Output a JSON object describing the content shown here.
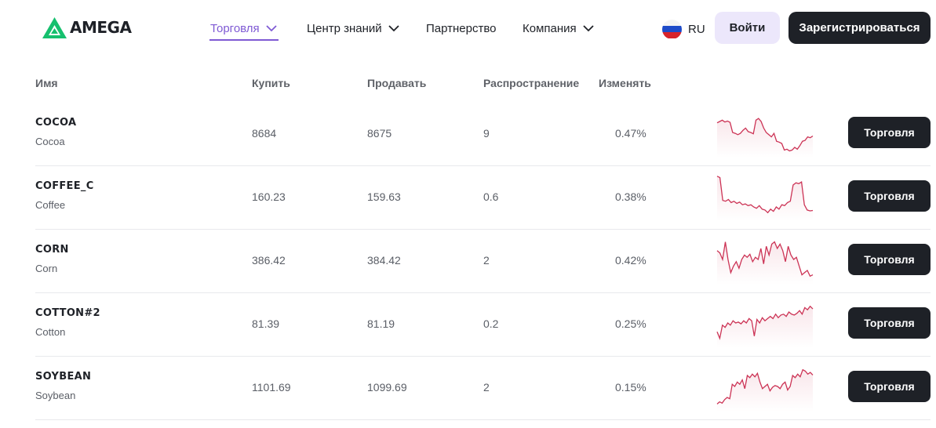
{
  "header": {
    "brand": "AMEGA",
    "nav": [
      {
        "label": "Торговля",
        "has_dropdown": true,
        "active": true
      },
      {
        "label": "Центр знаний",
        "has_dropdown": true,
        "active": false
      },
      {
        "label": "Партнерство",
        "has_dropdown": false,
        "active": false
      },
      {
        "label": "Компания",
        "has_dropdown": true,
        "active": false
      }
    ],
    "language": "RU",
    "login_label": "Войти",
    "register_label": "Зарегистрироваться"
  },
  "table": {
    "columns": {
      "name": "Имя",
      "buy": "Купить",
      "sell": "Продавать",
      "spread": "Распространение",
      "change": "Изменять"
    },
    "trade_label": "Торговля",
    "rows": [
      {
        "symbol": "COCOA",
        "name": "Cocoa",
        "buy": "8684",
        "sell": "8675",
        "spread": "9",
        "change": "0.47%",
        "sparkline": [
          0.72,
          0.75,
          0.78,
          0.74,
          0.76,
          0.73,
          0.5,
          0.48,
          0.45,
          0.48,
          0.55,
          0.6,
          0.52,
          0.5,
          0.47,
          0.78,
          0.82,
          0.75,
          0.6,
          0.5,
          0.45,
          0.4,
          0.48,
          0.3,
          0.28,
          0.25,
          0.1,
          0.12,
          0.08,
          0.1,
          0.16,
          0.12,
          0.2,
          0.3,
          0.32,
          0.4,
          0.38,
          0.42
        ]
      },
      {
        "symbol": "COFFEE_C",
        "name": "Coffee",
        "buy": "160.23",
        "sell": "159.63",
        "spread": "0.6",
        "change": "0.38%",
        "sparkline": [
          0.95,
          0.92,
          0.4,
          0.38,
          0.42,
          0.35,
          0.38,
          0.33,
          0.36,
          0.3,
          0.32,
          0.28,
          0.3,
          0.25,
          0.22,
          0.28,
          0.2,
          0.18,
          0.12,
          0.2,
          0.15,
          0.25,
          0.2,
          0.3,
          0.28,
          0.35,
          0.38,
          0.75,
          0.8,
          0.78,
          0.82,
          0.3,
          0.18,
          0.16,
          0.17
        ]
      },
      {
        "symbol": "CORN",
        "name": "Corn",
        "buy": "386.42",
        "sell": "384.42",
        "spread": "2",
        "change": "0.42%",
        "sparkline": [
          0.7,
          0.65,
          0.5,
          0.9,
          0.5,
          0.2,
          0.35,
          0.45,
          0.3,
          0.5,
          0.6,
          0.55,
          0.62,
          0.45,
          0.55,
          0.5,
          0.75,
          0.4,
          0.8,
          0.6,
          0.85,
          0.9,
          0.75,
          0.85,
          0.7,
          0.45,
          0.8,
          0.6,
          0.5,
          0.55,
          0.35,
          0.15,
          0.2,
          0.25,
          0.12,
          0.15
        ]
      },
      {
        "symbol": "COTTON#2",
        "name": "Cotton",
        "buy": "81.39",
        "sell": "81.19",
        "spread": "0.2",
        "change": "0.25%",
        "sparkline": [
          0.3,
          0.15,
          0.45,
          0.4,
          0.5,
          0.45,
          0.55,
          0.5,
          0.52,
          0.48,
          0.55,
          0.5,
          0.6,
          0.55,
          0.2,
          0.58,
          0.5,
          0.62,
          0.55,
          0.6,
          0.65,
          0.6,
          0.7,
          0.62,
          0.68,
          0.7,
          0.65,
          0.75,
          0.7,
          0.68,
          0.72,
          0.78,
          0.7,
          0.85,
          0.8,
          0.88,
          0.82
        ]
      },
      {
        "symbol": "SOYBEAN",
        "name": "Soybean",
        "buy": "1101.69",
        "sell": "1099.69",
        "spread": "2",
        "change": "0.15%",
        "sparkline": [
          0.1,
          0.15,
          0.12,
          0.2,
          0.25,
          0.22,
          0.55,
          0.5,
          0.6,
          0.55,
          0.65,
          0.45,
          0.75,
          0.7,
          0.78,
          0.72,
          0.8,
          0.6,
          0.45,
          0.5,
          0.55,
          0.4,
          0.48,
          0.52,
          0.5,
          0.45,
          0.55,
          0.6,
          0.42,
          0.5,
          0.75,
          0.7,
          0.78,
          0.72,
          0.88,
          0.85,
          0.78,
          0.82,
          0.76
        ]
      }
    ]
  },
  "colors": {
    "accent": "#7f5ad4",
    "dark": "#1e2127",
    "logo_green": "#16c06e",
    "sparkline": "#cc3355"
  }
}
